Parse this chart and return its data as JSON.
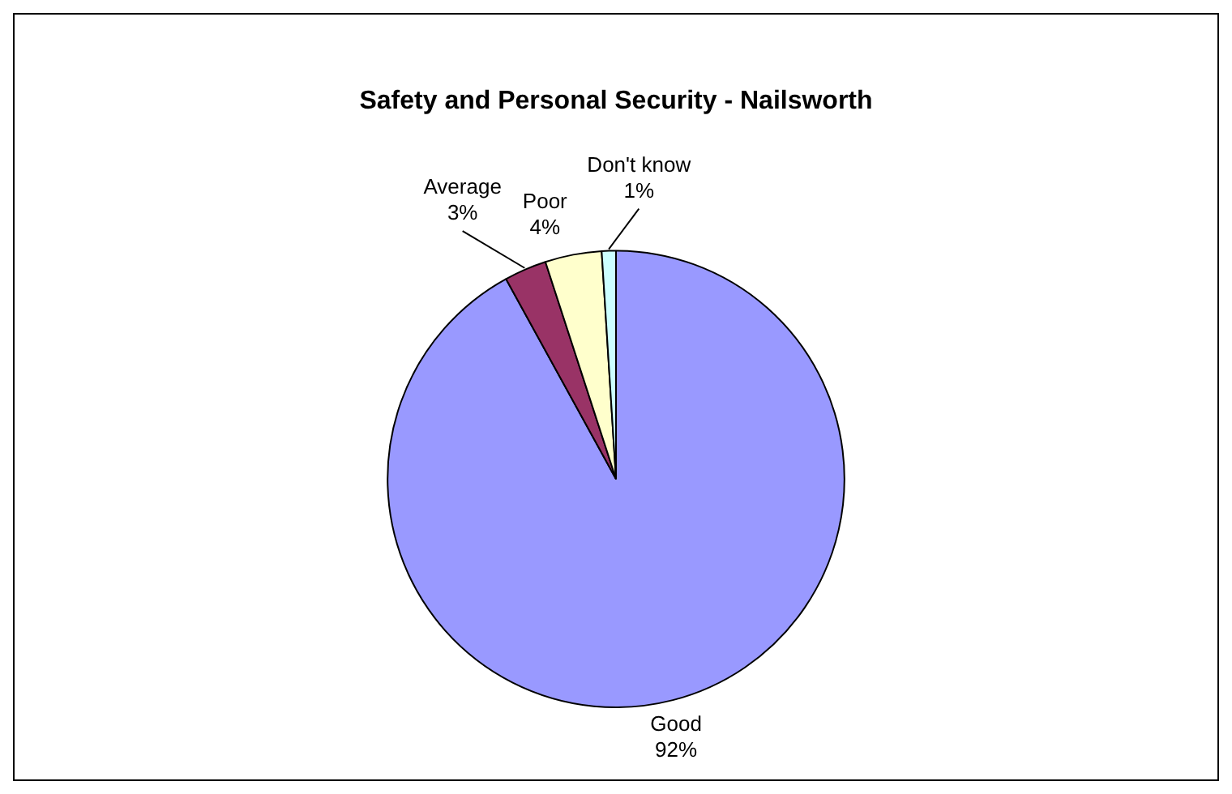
{
  "chart_data": {
    "type": "pie",
    "title": "Safety and Personal Security - Nailsworth",
    "categories": [
      "Good",
      "Average",
      "Poor",
      "Don't know"
    ],
    "values": [
      92,
      3,
      4,
      1
    ],
    "colors": [
      "#9999ff",
      "#993366",
      "#ffffcc",
      "#ccffff"
    ],
    "value_labels": [
      "92%",
      "3%",
      "4%",
      "1%"
    ],
    "legend": false
  }
}
